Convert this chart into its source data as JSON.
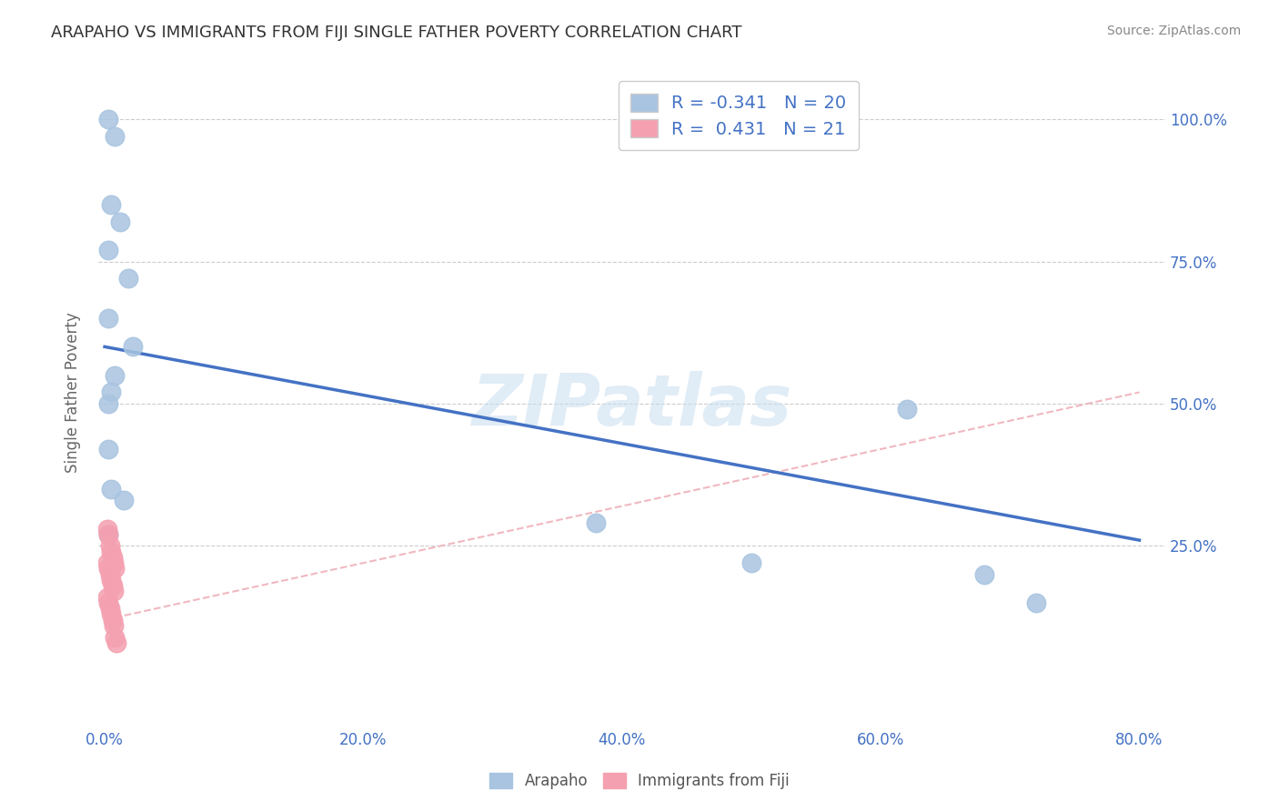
{
  "title": "ARAPAHO VS IMMIGRANTS FROM FIJI SINGLE FATHER POVERTY CORRELATION CHART",
  "source": "Source: ZipAtlas.com",
  "xlabel_ticks": [
    "0.0%",
    "20.0%",
    "40.0%",
    "60.0%",
    "80.0%"
  ],
  "ylabel_ticks": [
    "25.0%",
    "50.0%",
    "75.0%",
    "100.0%"
  ],
  "ylabel": "Single Father Poverty",
  "xlim": [
    -0.005,
    0.82
  ],
  "ylim": [
    -0.06,
    1.1
  ],
  "arapaho_R": -0.341,
  "arapaho_N": 20,
  "fiji_R": 0.431,
  "fiji_N": 21,
  "arapaho_color": "#a8c4e0",
  "fiji_color": "#f4a0b0",
  "arapaho_line_color": "#4472c4",
  "fiji_line_color": "#f0b8c0",
  "watermark": "ZIPatlas",
  "arapaho_scatter_x": [
    0.003,
    0.008,
    0.005,
    0.012,
    0.003,
    0.018,
    0.022,
    0.003,
    0.008,
    0.005,
    0.003,
    0.003,
    0.003,
    0.005,
    0.38,
    0.62,
    0.68,
    0.72,
    0.5,
    0.015
  ],
  "arapaho_scatter_y": [
    1.0,
    0.97,
    0.85,
    0.82,
    0.77,
    0.72,
    0.6,
    0.65,
    0.55,
    0.52,
    0.5,
    0.42,
    0.27,
    0.35,
    0.29,
    0.49,
    0.2,
    0.15,
    0.22,
    0.33
  ],
  "fiji_scatter_x": [
    0.002,
    0.003,
    0.004,
    0.005,
    0.006,
    0.007,
    0.008,
    0.002,
    0.003,
    0.004,
    0.005,
    0.006,
    0.007,
    0.002,
    0.003,
    0.004,
    0.005,
    0.006,
    0.007,
    0.008,
    0.009
  ],
  "fiji_scatter_y": [
    0.28,
    0.27,
    0.25,
    0.24,
    0.23,
    0.22,
    0.21,
    0.22,
    0.21,
    0.2,
    0.19,
    0.18,
    0.17,
    0.16,
    0.15,
    0.14,
    0.13,
    0.12,
    0.11,
    0.09,
    0.08
  ],
  "arapaho_trend_x": [
    0.0,
    0.8
  ],
  "arapaho_trend_y": [
    0.6,
    0.26
  ],
  "fiji_trend_x": [
    0.0,
    0.8
  ],
  "fiji_trend_y": [
    0.12,
    0.52
  ],
  "grid_color": "#cccccc",
  "title_color": "#333333",
  "axis_tick_color": "#4472c4"
}
